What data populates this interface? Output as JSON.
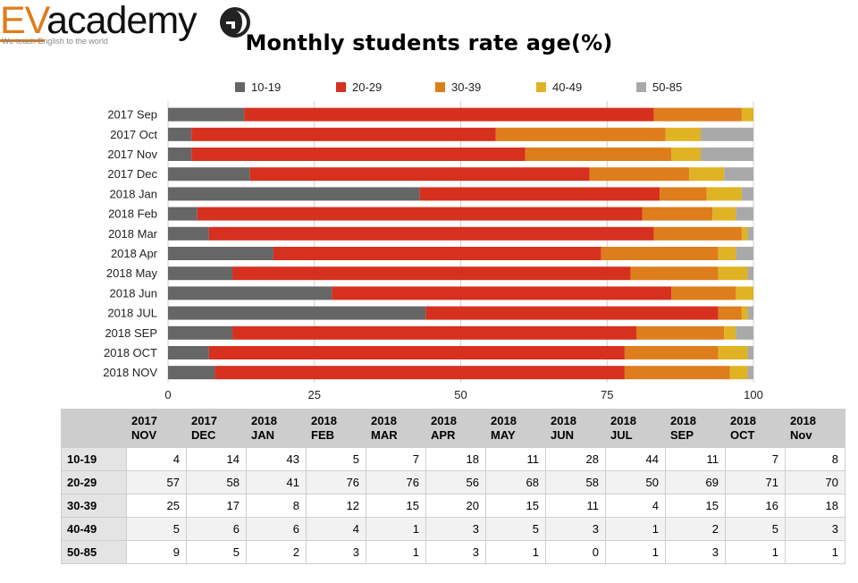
{
  "logo": {
    "brand_ev": "EV",
    "brand_rest": "academy",
    "tagline": "We teach English to the world",
    "emblem_icon": "globe-emblem-icon",
    "ev_color": "#e07b1a"
  },
  "chart_data": {
    "type": "bar",
    "orientation": "horizontal",
    "stacked": true,
    "title": "Monthly students rate age(%)",
    "categories": [
      "2017 Sep",
      "2017 Oct",
      "2017 Nov",
      "2017 Dec",
      "2018 Jan",
      "2018 Feb",
      "2018 Mar",
      "2018 Apr",
      "2018 May",
      "2018 Jun",
      "2018 JUL",
      "2018 SEP",
      "2018 OCT",
      "2018 NOV"
    ],
    "series": [
      {
        "name": "10-19",
        "color": "#666666",
        "values": [
          13,
          4,
          4,
          14,
          43,
          5,
          7,
          18,
          11,
          28,
          44,
          11,
          7,
          8
        ]
      },
      {
        "name": "20-29",
        "color": "#d6301e",
        "values": [
          70,
          52,
          57,
          58,
          41,
          76,
          76,
          56,
          68,
          58,
          50,
          69,
          71,
          70
        ]
      },
      {
        "name": "30-39",
        "color": "#dd7d1c",
        "values": [
          15,
          29,
          25,
          17,
          8,
          12,
          15,
          20,
          15,
          11,
          4,
          15,
          16,
          18
        ]
      },
      {
        "name": "40-49",
        "color": "#dfb323",
        "values": [
          2,
          6,
          5,
          6,
          6,
          4,
          1,
          3,
          5,
          3,
          1,
          2,
          5,
          3
        ]
      },
      {
        "name": "50-85",
        "color": "#a9a9a9",
        "values": [
          0,
          9,
          9,
          5,
          2,
          3,
          1,
          3,
          1,
          0,
          1,
          3,
          1,
          1
        ]
      }
    ],
    "xlim": [
      0,
      100
    ],
    "xticks": [
      "0",
      "25",
      "50",
      "75",
      "100"
    ],
    "legend": "top",
    "grid": true
  },
  "table": {
    "columns": [
      [
        "2017",
        "NOV"
      ],
      [
        "2017",
        "DEC"
      ],
      [
        "2018",
        "JAN"
      ],
      [
        "2018",
        "FEB"
      ],
      [
        "2018",
        "MAR"
      ],
      [
        "2018",
        "APR"
      ],
      [
        "2018",
        "MAY"
      ],
      [
        "2018",
        "JUN"
      ],
      [
        "2018",
        "JUL"
      ],
      [
        "2018",
        "SEP"
      ],
      [
        "2018",
        "OCT"
      ],
      [
        "2018",
        "Nov"
      ]
    ],
    "rows": [
      {
        "label": "10-19",
        "values": [
          "4",
          "14",
          "43",
          "5",
          "7",
          "18",
          "11",
          "28",
          "44",
          "11",
          "7",
          "8"
        ]
      },
      {
        "label": "20-29",
        "values": [
          "57",
          "58",
          "41",
          "76",
          "76",
          "56",
          "68",
          "58",
          "50",
          "69",
          "71",
          "70"
        ]
      },
      {
        "label": "30-39",
        "values": [
          "25",
          "17",
          "8",
          "12",
          "15",
          "20",
          "15",
          "11",
          "4",
          "15",
          "16",
          "18"
        ]
      },
      {
        "label": "40-49",
        "values": [
          "5",
          "6",
          "6",
          "4",
          "1",
          "3",
          "5",
          "3",
          "1",
          "2",
          "5",
          "3"
        ]
      },
      {
        "label": "50-85",
        "values": [
          "9",
          "5",
          "2",
          "3",
          "1",
          "3",
          "1",
          "0",
          "1",
          "3",
          "1",
          "1"
        ]
      }
    ]
  }
}
